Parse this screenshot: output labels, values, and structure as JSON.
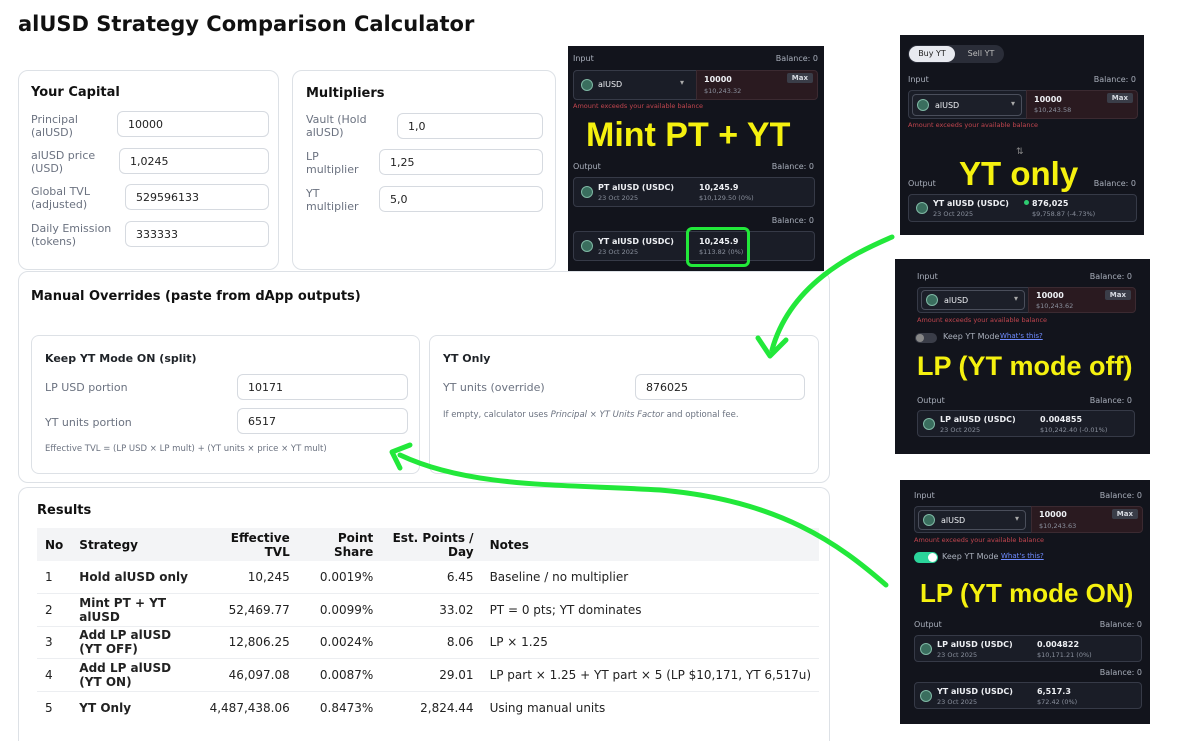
{
  "page": {
    "title": "alUSD Strategy Comparison Calculator"
  },
  "capital": {
    "heading": "Your Capital",
    "principal_label": "Principal (alUSD)",
    "principal": "10000",
    "price_label": "alUSD price (USD)",
    "price": "1,0245",
    "tvl_label": "Global TVL (adjusted)",
    "tvl": "529596133",
    "emission_label": "Daily Emission (tokens)",
    "emission": "333333"
  },
  "multipliers": {
    "heading": "Multipliers",
    "vault_label": "Vault (Hold alUSD)",
    "vault": "1,0",
    "lp_label": "LP multiplier",
    "lp": "1,25",
    "yt_label": "YT multiplier",
    "yt": "5,0"
  },
  "overrides": {
    "heading": "Manual Overrides (paste from dApp outputs)",
    "keep": {
      "heading": "Keep YT Mode ON (split)",
      "lp_label": "LP USD portion",
      "lp": "10171",
      "yt_label": "YT units portion",
      "yt": "6517",
      "note": "Effective TVL = (LP USD × LP mult) + (YT units × price × YT mult)"
    },
    "ytonly": {
      "heading": "YT Only",
      "units_label": "YT units (override)",
      "units": "876025",
      "note_a": "If empty, calculator uses ",
      "note_b": "Principal × YT Units Factor",
      "note_c": " and optional fee."
    }
  },
  "results": {
    "heading": "Results",
    "columns": [
      "No",
      "Strategy",
      "Effective TVL",
      "Point Share",
      "Est. Points / Day",
      "Notes"
    ],
    "rows": [
      {
        "no": "1",
        "strategy": "Hold alUSD only",
        "tvl": "10,245",
        "share": "0.0019%",
        "points": "6.45",
        "notes": "Baseline / no multiplier"
      },
      {
        "no": "2",
        "strategy": "Mint PT + YT alUSD",
        "tvl": "52,469.77",
        "share": "0.0099%",
        "points": "33.02",
        "notes": "PT = 0 pts; YT dominates"
      },
      {
        "no": "3",
        "strategy": "Add LP alUSD (YT OFF)",
        "tvl": "12,806.25",
        "share": "0.0024%",
        "points": "8.06",
        "notes": "LP × 1.25"
      },
      {
        "no": "4",
        "strategy": "Add LP alUSD (YT ON)",
        "tvl": "46,097.08",
        "share": "0.0087%",
        "points": "29.01",
        "notes": "LP part × 1.25 + YT part × 5 (LP $10,171, YT 6,517u)"
      },
      {
        "no": "5",
        "strategy": "YT Only",
        "tvl": "4,487,438.06",
        "share": "0.8473%",
        "points": "2,824.44",
        "notes": "Using manual units"
      }
    ]
  },
  "screens": {
    "mint": {
      "input_label": "Input",
      "balance": "Balance: 0",
      "token": "alUSD",
      "amount": "10000",
      "amount_usd": "$10,243.32",
      "max": "Max",
      "error": "Amount exceeds your available balance",
      "output_label": "Output",
      "pt_name": "PT alUSD (USDC)",
      "pt_date": "23 Oct 2025",
      "pt_amount": "10,245.9",
      "pt_usd": "$10,129.50 (0%)",
      "yt_name": "YT alUSD (USDC)",
      "yt_date": "23 Oct 2025",
      "yt_amount": "10,245.9",
      "yt_usd": "$113.82 (0%)",
      "caption": "Mint PT + YT"
    },
    "ytonly": {
      "tab_buy": "Buy YT",
      "tab_sell": "Sell YT",
      "input_label": "Input",
      "balance": "Balance: 0",
      "token": "alUSD",
      "amount": "10000",
      "amount_usd": "$10,243.58",
      "max": "Max",
      "error": "Amount exceeds your available balance",
      "output_label": "Output",
      "out_name": "YT alUSD (USDC)",
      "out_date": "23 Oct 2025",
      "out_amount": "876,025",
      "out_usd": "$9,758.87 (-4.73%)",
      "caption": "YT only"
    },
    "lpoff": {
      "input_label": "Input",
      "balance": "Balance: 0",
      "token": "alUSD",
      "amount": "10000",
      "amount_usd": "$10,243.62",
      "max": "Max",
      "error": "Amount exceeds your available balance",
      "toggle_label": "Keep YT Mode",
      "whats": "What's this?",
      "output_label": "Output",
      "out_name": "LP alUSD (USDC)",
      "out_date": "23 Oct 2025",
      "out_amount": "0.004855",
      "out_usd": "$10,242.40 (-0.01%)",
      "caption": "LP (YT mode off)"
    },
    "lpon": {
      "input_label": "Input",
      "balance": "Balance: 0",
      "token": "alUSD",
      "amount": "10000",
      "amount_usd": "$10,243.63",
      "max": "Max",
      "error": "Amount exceeds your available balance",
      "toggle_label": "Keep YT Mode",
      "whats": "What's this?",
      "output_label": "Output",
      "lp_name": "LP alUSD (USDC)",
      "lp_date": "23 Oct 2025",
      "lp_amount": "0.004822",
      "lp_usd": "$10,171.21 (0%)",
      "yt_name": "YT alUSD (USDC)",
      "yt_date": "23 Oct 2025",
      "yt_amount": "6,517.3",
      "yt_usd": "$72.42 (0%)",
      "caption": "LP (YT mode ON)"
    }
  },
  "colors": {
    "highlight": "#f5f10f",
    "annotation": "#22e83a",
    "panel_bg": "#12141c"
  }
}
